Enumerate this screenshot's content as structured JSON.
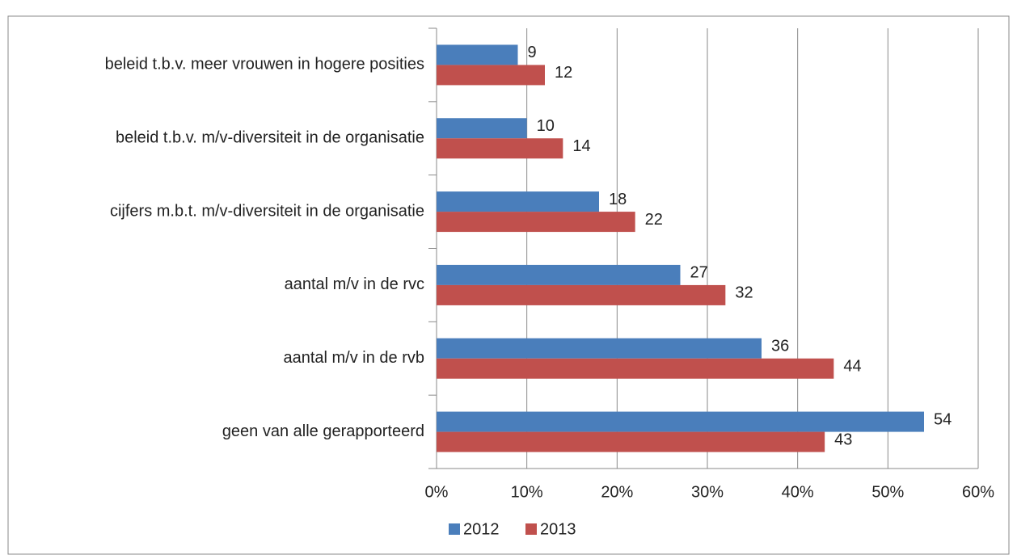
{
  "chart_data": {
    "type": "hbar",
    "categories": [
      "beleid t.b.v. meer vrouwen in hogere posities",
      "beleid t.b.v. m/v-diversiteit in de organisatie",
      "cijfers m.b.t. m/v-diversiteit in de organisatie",
      "aantal m/v in de rvc",
      "aantal m/v in de rvb",
      "geen van alle gerapporteerd"
    ],
    "series": [
      {
        "name": "2012",
        "color": "#4a7ebb",
        "values": [
          9,
          10,
          18,
          27,
          36,
          54
        ]
      },
      {
        "name": "2013",
        "color": "#c0504d",
        "values": [
          12,
          14,
          22,
          32,
          44,
          43
        ]
      }
    ],
    "xlim": [
      0,
      60
    ],
    "xticks": [
      {
        "value": 0,
        "label": "0%"
      },
      {
        "value": 10,
        "label": "10%"
      },
      {
        "value": 20,
        "label": "20%"
      },
      {
        "value": 30,
        "label": "30%"
      },
      {
        "value": 40,
        "label": "40%"
      },
      {
        "value": 50,
        "label": "50%"
      },
      {
        "value": 60,
        "label": "60%"
      }
    ],
    "grid": true,
    "legend": "bottom"
  }
}
